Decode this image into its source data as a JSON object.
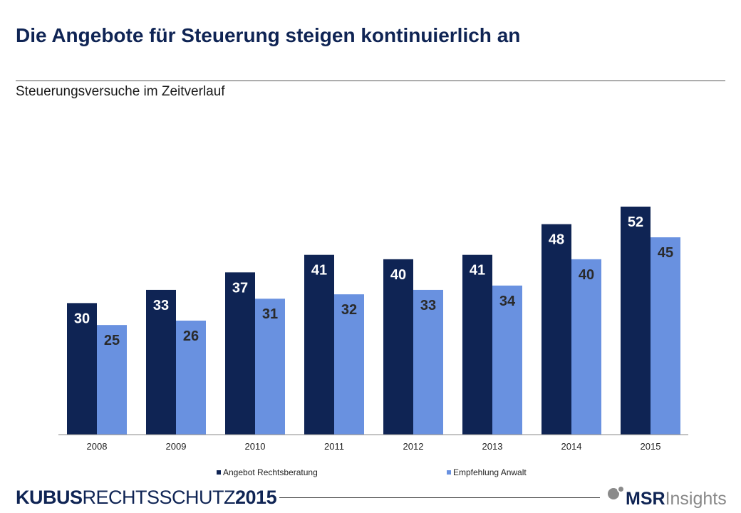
{
  "title": "Die Angebote für Steuerung steigen kontinuierlich an",
  "subtitle": "Steuerungsversuche im Zeitverlauf",
  "colors": {
    "series1": "#0f2454",
    "series2": "#6991e0",
    "label1": "#ffffff",
    "label2": "#2a2a2a"
  },
  "chart_data": {
    "type": "bar",
    "categories": [
      "2008",
      "2009",
      "2010",
      "2011",
      "2012",
      "2013",
      "2014",
      "2015"
    ],
    "series": [
      {
        "name": "Angebot Rechtsberatung",
        "values": [
          30,
          33,
          37,
          41,
          40,
          41,
          48,
          52
        ]
      },
      {
        "name": "Empfehlung Anwalt",
        "values": [
          25,
          26,
          31,
          32,
          33,
          34,
          40,
          45
        ]
      }
    ],
    "ylim": [
      0,
      52
    ],
    "legend": "bottom",
    "grid": false,
    "data_labels": true
  },
  "footer": {
    "brand_bold": "KUBUS",
    "brand_light": "RECHTSSCHUTZ",
    "brand_year": "2015",
    "logo_bold": "MSR",
    "logo_light": "Insights"
  }
}
